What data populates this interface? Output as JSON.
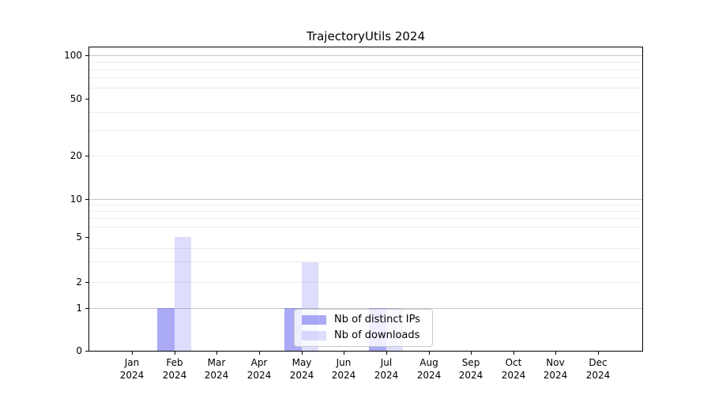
{
  "chart_data": {
    "type": "bar",
    "title": "TrajectoryUtils 2024",
    "categories": [
      "Jan 2024",
      "Feb 2024",
      "Mar 2024",
      "Apr 2024",
      "May 2024",
      "Jun 2024",
      "Jul 2024",
      "Aug 2024",
      "Sep 2024",
      "Oct 2024",
      "Nov 2024",
      "Dec 2024"
    ],
    "series": [
      {
        "name": "Nb of distinct IPs",
        "color": "#6464f0",
        "fill_alpha": 0.55,
        "color_on_white": "#a9a9f8",
        "values": [
          0,
          1,
          0,
          0,
          1,
          0,
          1,
          0,
          0,
          0,
          0,
          0
        ]
      },
      {
        "name": "Nb of downloads",
        "color": "#6464f0",
        "fill_alpha": 0.22,
        "color_on_white": "#dbdbf9",
        "values": [
          0,
          5,
          0,
          0,
          3,
          0,
          1,
          0,
          0,
          0,
          0,
          0
        ]
      }
    ],
    "xlabel": "",
    "ylabel": "",
    "yscale": "symlog",
    "ylim": [
      0,
      113
    ],
    "y_labeled_ticks": [
      0,
      1,
      2,
      5,
      10,
      20,
      50,
      100
    ],
    "y_decade_gridlines": [
      1,
      10,
      100
    ],
    "y_minor_gridlines": [
      2,
      3,
      4,
      6,
      7,
      8,
      9,
      20,
      30,
      40,
      60,
      70,
      80,
      90
    ],
    "grid": "on",
    "legend_position": "lower center"
  },
  "colors": {
    "spine": "#000000",
    "decade_grid": "#c6c6c6",
    "minor_grid": "#ececec",
    "legend_border": "#cccccc"
  }
}
